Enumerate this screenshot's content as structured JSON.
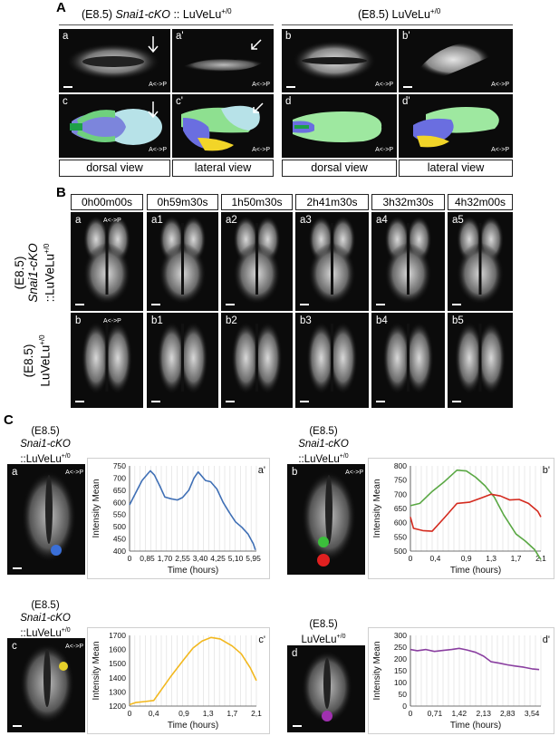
{
  "figure": {
    "panelA": {
      "letter": "A",
      "left_header_pre": "(E8.5) ",
      "left_header_italic": "Snai1-cKO",
      "left_header_post": " :: LuVeLu",
      "left_header_sup": "+/0",
      "right_header_pre": "(E8.5) LuVeLu",
      "right_header_sup": "+/0",
      "images": [
        {
          "label": "a",
          "ap": "A<->P"
        },
        {
          "label": "a'",
          "ap": "A<->P"
        },
        {
          "label": "b",
          "ap": "A<->P"
        },
        {
          "label": "b'",
          "ap": "A<->P"
        },
        {
          "label": "c",
          "ap": "A<->P"
        },
        {
          "label": "c'",
          "ap": "A<->P"
        },
        {
          "label": "d",
          "ap": "A<->P"
        },
        {
          "label": "d'",
          "ap": "A<->P"
        }
      ],
      "views": [
        "dorsal view",
        "lateral view",
        "dorsal view",
        "lateral view"
      ]
    },
    "panelB": {
      "letter": "B",
      "times": [
        "0h00m00s",
        "0h59m30s",
        "1h50m30s",
        "2h41m30s",
        "3h32m30s",
        "4h32m00s"
      ],
      "row1_labels": [
        "a",
        "a1",
        "a2",
        "a3",
        "a4",
        "a5"
      ],
      "row2_labels": [
        "b",
        "b1",
        "b2",
        "b3",
        "b4",
        "b5"
      ],
      "row1_side_pre": "(E8.5)",
      "row1_side_italic": "Snai1-cKO",
      "row1_side_post": "::LuVeLu",
      "row1_side_sup": "+/0",
      "row2_side_pre": "(E8.5)",
      "row2_side_post": "LuVeLu",
      "row2_side_sup": "+/0",
      "ap": "A<->P"
    },
    "panelC": {
      "letter": "C",
      "blocks": [
        {
          "l1": "(E8.5)",
          "l2": "Snai1-cKO",
          "l3": "::LuVeLu",
          "sup": "+/0",
          "img_label": "a",
          "dot_colors": [
            "#3a6fd8"
          ]
        },
        {
          "l1": "(E8.5)",
          "l2": "Snai1-cKO",
          "l3": "::LuVeLu",
          "sup": "+/0",
          "img_label": "b",
          "dot_colors": [
            "#3bbf3b",
            "#e02020"
          ]
        },
        {
          "l1": "(E8.5)",
          "l2": "Snai1-cKO",
          "l3": "::LuVeLu",
          "sup": "+/0",
          "img_label": "c",
          "dot_colors": [
            "#e6d02a"
          ]
        },
        {
          "l1": "(E8.5)",
          "l2": "",
          "l3": "LuVeLu",
          "sup": "+/0",
          "img_label": "d",
          "dot_colors": [
            "#a030b0"
          ]
        }
      ],
      "ap": "A<->P"
    }
  },
  "chart_data": [
    {
      "type": "line",
      "panel": "a'",
      "xlabel": "Time (hours)",
      "ylabel": "Intensity Mean",
      "ylim": [
        400,
        750
      ],
      "yticks": [
        400,
        450,
        500,
        550,
        600,
        650,
        700,
        750
      ],
      "xlim": [
        0,
        6.1
      ],
      "xticks": [
        0,
        0.85,
        1.7,
        2.55,
        3.4,
        4.25,
        5.1,
        5.95
      ],
      "xtick_labels": [
        "0",
        "0,85",
        "1,70",
        "2,55",
        "3,40",
        "4,25",
        "5,10",
        "5,95"
      ],
      "series": [
        {
          "color": "#3f6fb5",
          "x": [
            0,
            0.3,
            0.6,
            0.85,
            1.0,
            1.2,
            1.45,
            1.7,
            2.0,
            2.3,
            2.55,
            2.85,
            3.1,
            3.3,
            3.45,
            3.65,
            3.9,
            4.2,
            4.5,
            4.8,
            5.1,
            5.4,
            5.7,
            5.95,
            6.05
          ],
          "y": [
            590,
            640,
            690,
            715,
            730,
            712,
            668,
            622,
            615,
            610,
            620,
            650,
            700,
            725,
            710,
            690,
            685,
            655,
            600,
            558,
            520,
            498,
            470,
            430,
            405
          ]
        }
      ]
    },
    {
      "type": "line",
      "panel": "b'",
      "xlabel": "Time (hours)",
      "ylabel": "Intensity Mean",
      "ylim": [
        500,
        800
      ],
      "yticks": [
        500,
        550,
        600,
        650,
        700,
        750,
        800
      ],
      "xlim": [
        0,
        2.1
      ],
      "xticks": [
        0,
        0.4,
        0.9,
        1.3,
        1.7,
        2.1
      ],
      "xtick_labels": [
        "0",
        "0,4",
        "0,9",
        "1,3",
        "1,7",
        "2,1"
      ],
      "series": [
        {
          "color": "#5aa844",
          "x": [
            0,
            0.15,
            0.35,
            0.55,
            0.75,
            0.9,
            1.05,
            1.2,
            1.35,
            1.5,
            1.7,
            1.85,
            2.0,
            2.1
          ],
          "y": [
            660,
            668,
            710,
            745,
            785,
            782,
            760,
            730,
            690,
            628,
            560,
            535,
            505,
            470
          ]
        },
        {
          "color": "#d42a1e",
          "x": [
            0,
            0.05,
            0.2,
            0.35,
            0.55,
            0.75,
            0.95,
            1.15,
            1.3,
            1.45,
            1.6,
            1.75,
            1.9,
            2.05,
            2.1
          ],
          "y": [
            620,
            580,
            572,
            570,
            618,
            668,
            672,
            688,
            700,
            694,
            680,
            682,
            668,
            640,
            620
          ]
        }
      ]
    },
    {
      "type": "line",
      "panel": "c'",
      "xlabel": "Time (hours)",
      "ylabel": "Intensity Mean",
      "ylim": [
        1200,
        1700
      ],
      "yticks": [
        1200,
        1300,
        1400,
        1500,
        1600,
        1700
      ],
      "xlim": [
        0,
        2.1
      ],
      "xticks": [
        0,
        0.4,
        0.9,
        1.3,
        1.7,
        2.1
      ],
      "xtick_labels": [
        "0",
        "0,4",
        "0,9",
        "1,3",
        "1,7",
        "2,1"
      ],
      "series": [
        {
          "color": "#f2b81f",
          "x": [
            0,
            0.1,
            0.25,
            0.4,
            0.55,
            0.7,
            0.9,
            1.05,
            1.2,
            1.35,
            1.5,
            1.7,
            1.85,
            2.0,
            2.1
          ],
          "y": [
            1210,
            1225,
            1232,
            1240,
            1330,
            1420,
            1530,
            1610,
            1660,
            1685,
            1675,
            1625,
            1570,
            1470,
            1380
          ]
        }
      ]
    },
    {
      "type": "line",
      "panel": "d'",
      "xlabel": "Time (hours)",
      "ylabel": "Intensity Mean",
      "ylim": [
        0,
        300
      ],
      "yticks": [
        0,
        50,
        100,
        150,
        200,
        250,
        300
      ],
      "xlim": [
        0,
        3.8
      ],
      "xticks": [
        0,
        0.71,
        1.42,
        2.13,
        2.83,
        3.54
      ],
      "xtick_labels": [
        "0",
        "0,71",
        "1,42",
        "2,13",
        "2,83",
        "3,54"
      ],
      "series": [
        {
          "color": "#8a3fa0",
          "x": [
            0,
            0.2,
            0.45,
            0.7,
            0.95,
            1.2,
            1.42,
            1.65,
            1.9,
            2.13,
            2.35,
            2.6,
            2.83,
            3.05,
            3.3,
            3.54,
            3.75
          ],
          "y": [
            240,
            235,
            240,
            232,
            236,
            240,
            245,
            238,
            228,
            212,
            188,
            182,
            175,
            170,
            165,
            158,
            155
          ]
        }
      ]
    }
  ]
}
